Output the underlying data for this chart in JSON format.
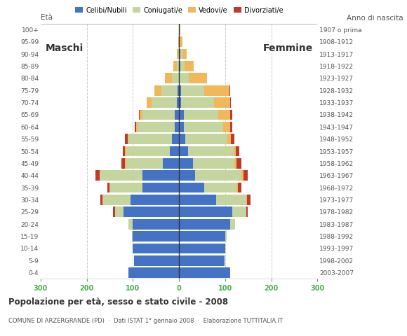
{
  "age_groups": [
    "0-4",
    "5-9",
    "10-14",
    "15-19",
    "20-24",
    "25-29",
    "30-34",
    "35-39",
    "40-44",
    "45-49",
    "50-54",
    "55-59",
    "60-64",
    "65-69",
    "70-74",
    "75-79",
    "80-84",
    "85-89",
    "90-94",
    "95-99",
    "100+"
  ],
  "birth_years": [
    "2003-2007",
    "1998-2002",
    "1993-1997",
    "1988-1992",
    "1983-1987",
    "1978-1982",
    "1973-1977",
    "1968-1972",
    "1963-1967",
    "1958-1962",
    "1953-1957",
    "1948-1952",
    "1943-1947",
    "1938-1942",
    "1933-1937",
    "1928-1932",
    "1923-1927",
    "1918-1922",
    "1913-1917",
    "1908-1912",
    "1907 o prima"
  ],
  "colors": {
    "celibe": "#4472c4",
    "coniugato": "#c5d5a0",
    "vedovo": "#f0b85a",
    "divorziato": "#c0392b"
  },
  "males": {
    "celibe": [
      110,
      98,
      100,
      100,
      100,
      120,
      105,
      80,
      80,
      35,
      20,
      15,
      10,
      10,
      5,
      3,
      1,
      0,
      0,
      0,
      0
    ],
    "coniugato": [
      0,
      0,
      0,
      2,
      10,
      18,
      60,
      70,
      90,
      80,
      95,
      95,
      80,
      70,
      55,
      35,
      15,
      5,
      2,
      0,
      0
    ],
    "vedovo": [
      0,
      0,
      0,
      0,
      0,
      0,
      1,
      1,
      2,
      2,
      2,
      2,
      3,
      5,
      10,
      15,
      15,
      8,
      3,
      2,
      0
    ],
    "divorziato": [
      0,
      0,
      0,
      0,
      0,
      5,
      5,
      5,
      10,
      8,
      5,
      5,
      3,
      2,
      0,
      0,
      0,
      0,
      0,
      0,
      0
    ]
  },
  "females": {
    "celibe": [
      110,
      98,
      100,
      100,
      110,
      115,
      80,
      55,
      35,
      30,
      20,
      14,
      10,
      10,
      5,
      4,
      1,
      2,
      2,
      0,
      0
    ],
    "coniugato": [
      0,
      0,
      0,
      3,
      12,
      30,
      65,
      70,
      100,
      90,
      98,
      90,
      85,
      75,
      70,
      50,
      20,
      10,
      5,
      2,
      0
    ],
    "vedovo": [
      0,
      0,
      0,
      0,
      0,
      0,
      2,
      2,
      4,
      5,
      5,
      8,
      15,
      25,
      35,
      55,
      40,
      20,
      10,
      5,
      2
    ],
    "divorziato": [
      0,
      0,
      0,
      0,
      0,
      4,
      8,
      8,
      10,
      10,
      8,
      8,
      5,
      5,
      3,
      2,
      0,
      0,
      0,
      0,
      0
    ]
  },
  "title": "Popolazione per età, sesso e stato civile - 2008",
  "subtitle": "COMUNE DI ARZERGRANDE (PD)  ·  Dati ISTAT 1° gennaio 2008  ·  Elaborazione TUTTITALIA.IT",
  "xlabel_left": "Età",
  "xlabel_right": "Anno di nascita",
  "label_maschi": "Maschi",
  "label_femmine": "Femmine",
  "legend_labels": [
    "Celibi/Nubili",
    "Coniugati/e",
    "Vedovi/e",
    "Divorziati/e"
  ],
  "xlim": 300,
  "background_color": "#ffffff",
  "grid_color": "#aaaaaa",
  "bar_height": 0.85
}
